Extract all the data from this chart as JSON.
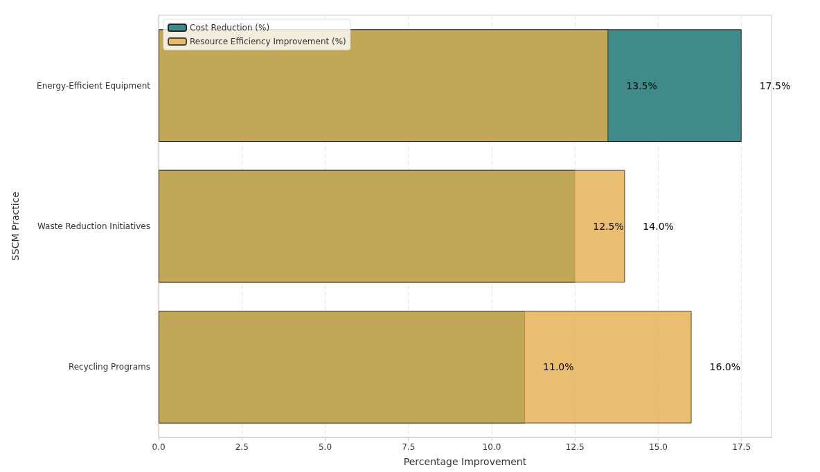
{
  "chart_data": {
    "type": "bar",
    "orientation": "horizontal",
    "xlabel": "Percentage Improvement",
    "ylabel": "SSCM Practice",
    "categories": [
      "Energy-Efficient Equipment",
      "Waste Reduction Initiatives",
      "Recycling Programs"
    ],
    "series": [
      {
        "name": "Cost Reduction (%)",
        "color": "#3f8a8a",
        "values": [
          17.5,
          12.5,
          11.0
        ],
        "value_labels": [
          "17.5%",
          "12.5%",
          "11.0%"
        ]
      },
      {
        "name": "Resource Efficiency Improvement (%)",
        "color": "#e5ae4c",
        "values": [
          13.5,
          14.0,
          16.0
        ],
        "value_labels": [
          "13.5%",
          "14.0%",
          "16.0%"
        ]
      }
    ],
    "xlim": [
      0,
      18.4
    ],
    "xticks": [
      {
        "value": 0,
        "label": "0.0"
      },
      {
        "value": 2.5,
        "label": "2.5"
      },
      {
        "value": 5,
        "label": "5.0"
      },
      {
        "value": 7.5,
        "label": "7.5"
      },
      {
        "value": 10,
        "label": "10.0"
      },
      {
        "value": 12.5,
        "label": "12.5"
      },
      {
        "value": 15,
        "label": "15.0"
      },
      {
        "value": 17.5,
        "label": "17.5"
      }
    ],
    "grid": "x",
    "legend": "top left"
  }
}
